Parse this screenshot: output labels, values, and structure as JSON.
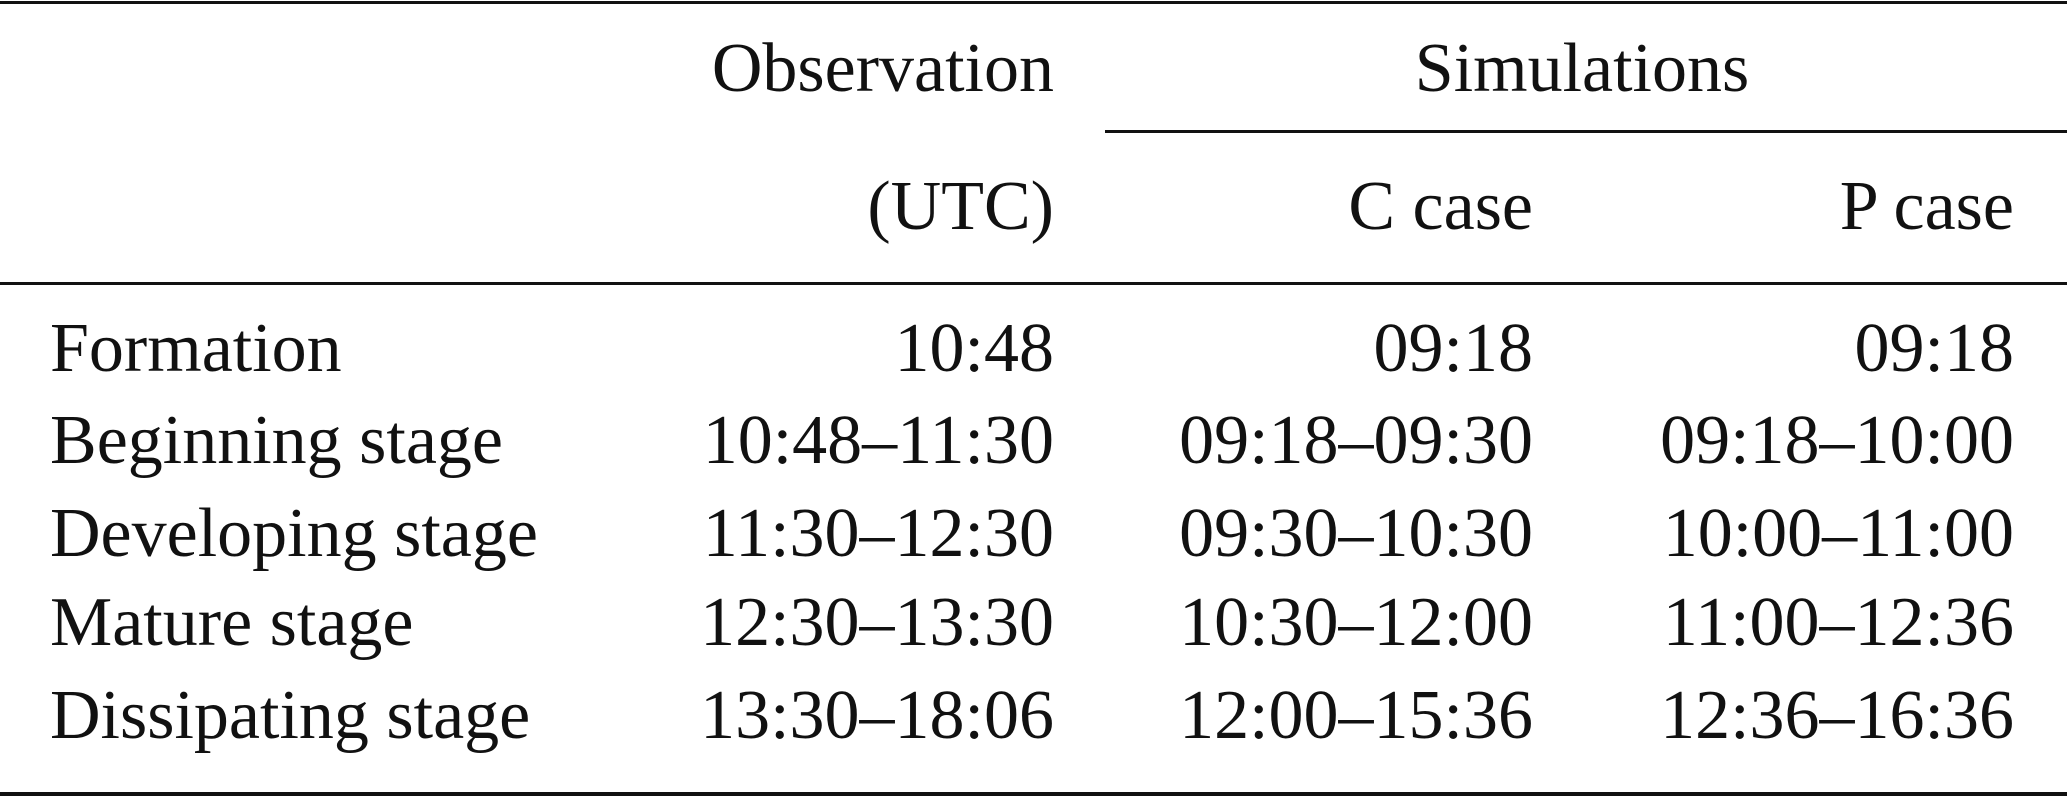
{
  "header": {
    "observation": "Observation",
    "simulations": "Simulations",
    "observation_unit": "(UTC)",
    "c_case": "C case",
    "p_case": "P case"
  },
  "table": {
    "rows": [
      [
        "Formation",
        "10:48",
        "09:18",
        "09:18"
      ],
      [
        "Beginning stage",
        "10:48–11:30",
        "09:18–09:30",
        "09:18–10:00"
      ],
      [
        "Developing stage",
        "11:30–12:30",
        "09:30–10:30",
        "10:00–11:00"
      ],
      [
        "Mature stage",
        "12:30–13:30",
        "10:30–12:00",
        "11:00–12:36"
      ],
      [
        "Dissipating stage",
        "13:30–18:06",
        "12:00–15:36",
        "12:36–16:36"
      ]
    ]
  }
}
